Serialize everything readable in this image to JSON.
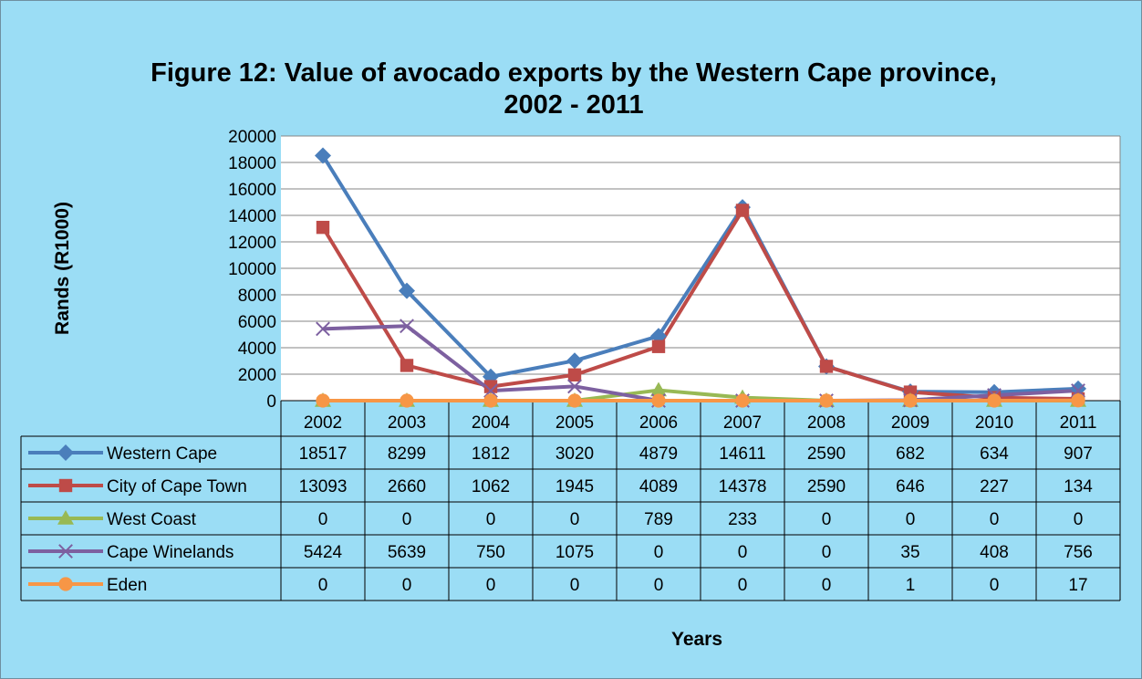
{
  "chart_data": {
    "type": "line",
    "title": "Figure 12: Value of avocado exports by the Western Cape province,",
    "title_line2": "2002 - 2011",
    "ylabel": "Rands (R1000)",
    "xlabel": "Years",
    "ylim": [
      0,
      20000
    ],
    "yticks": [
      "0",
      "2000",
      "4000",
      "6000",
      "8000",
      "10000",
      "12000",
      "14000",
      "16000",
      "18000",
      "20000"
    ],
    "grid": true,
    "legend": "data-table-left",
    "categories": [
      "2002",
      "2003",
      "2004",
      "2005",
      "2006",
      "2007",
      "2008",
      "2009",
      "2010",
      "2011"
    ],
    "series": [
      {
        "name": "Western Cape",
        "color": "#4a7ebb",
        "marker": "diamond",
        "values": [
          18517,
          8299,
          1812,
          3020,
          4879,
          14611,
          2590,
          682,
          634,
          907
        ]
      },
      {
        "name": "City of Cape Town",
        "color": "#be4b48",
        "marker": "square",
        "values": [
          13093,
          2660,
          1062,
          1945,
          4089,
          14378,
          2590,
          646,
          227,
          134
        ]
      },
      {
        "name": "West Coast",
        "color": "#98b954",
        "marker": "triangle",
        "values": [
          0,
          0,
          0,
          0,
          789,
          233,
          0,
          0,
          0,
          0
        ]
      },
      {
        "name": "Cape Winelands",
        "color": "#7d60a0",
        "marker": "x",
        "values": [
          5424,
          5639,
          750,
          1075,
          0,
          0,
          0,
          35,
          408,
          756
        ]
      },
      {
        "name": "Eden",
        "color": "#f79646",
        "marker": "circle",
        "values": [
          0,
          0,
          0,
          0,
          0,
          0,
          0,
          1,
          0,
          17
        ]
      }
    ]
  }
}
